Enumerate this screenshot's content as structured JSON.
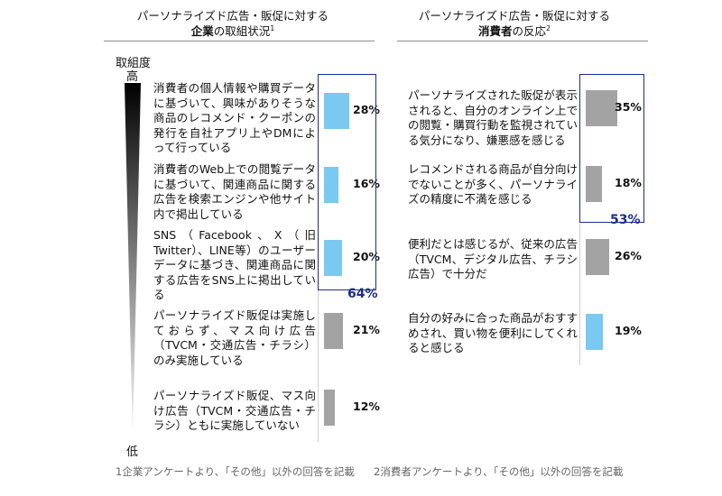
{
  "left_panel": {
    "title_line1": "パーソナライズド広告・販促に対する",
    "title_bold": "企業",
    "title_rest": "の取組状況",
    "title_note": "1"
  },
  "right_panel": {
    "title_line1": "パーソナライズド広告・販促に対する",
    "title_bold": "消費者",
    "title_rest": "の反応",
    "title_note": "2"
  },
  "axis": {
    "label": "取組度",
    "high": "高",
    "low": "低"
  },
  "footnotes": {
    "left": "1企業アンケートより、「その他」以外の回答を記載",
    "right": "2消費者アンケートより、「その他」以外の回答を記載"
  },
  "colors": {
    "highlight_bar": "#79c9f0",
    "normal_bar": "#a3a3a3",
    "total_box": "#1b2d8a"
  },
  "chart_data": [
    {
      "type": "bar",
      "title": "パーソナライズド広告・販促に対する企業の取組状況",
      "unit": "%",
      "categories": [
        "消費者の個人情報や購買データに基づいて、興味がありそうな商品のレコメンド・クーポンの発行を自社アプリ上やDMによって行っている",
        "消費者のWeb上での閲覧データに基づいて、関連商品に関する広告を検索エンジンや他サイト内で掲出している",
        "SNS（Facebook、X（旧Twitter）、LINE等）のユーザーデータに基づき、関連商品に関する広告をSNS上に掲出している",
        "パーソナライズド販促は実施しておらず、マス向け広告（TVCM・交通広告・チラシ）のみ実施している",
        "パーソナライズド販促、マス向け広告（TVCM・交通広告・チラシ）ともに実施していない"
      ],
      "values": [
        28,
        16,
        20,
        21,
        12
      ],
      "value_labels": [
        "28%",
        "16%",
        "20%",
        "21%",
        "12%"
      ],
      "highlighted": [
        true,
        true,
        true,
        false,
        false
      ],
      "group_total_label": "64%",
      "xlim": [
        0,
        100
      ]
    },
    {
      "type": "bar",
      "title": "パーソナライズド広告・販促に対する消費者の反応",
      "unit": "%",
      "categories": [
        "パーソナライズされた販促が表示されると、自分のオンライン上での閲覧・購買行動を監視されている気分になり、嫌悪感を感じる",
        "レコメンドされる商品が自分向けでないことが多く、パーソナライズの精度に不満を感じる",
        "便利だとは感じるが、従来の広告（TVCM、デジタル広告、チラシ広告）で十分だ",
        "自分の好みに合った商品がおすすめされ、買い物を便利にしてくれると感じる"
      ],
      "values": [
        35,
        18,
        26,
        19
      ],
      "value_labels": [
        "35%",
        "18%",
        "26%",
        "19%"
      ],
      "highlighted": [
        false,
        false,
        false,
        true
      ],
      "group_total_label": "53%",
      "xlim": [
        0,
        100
      ]
    }
  ]
}
